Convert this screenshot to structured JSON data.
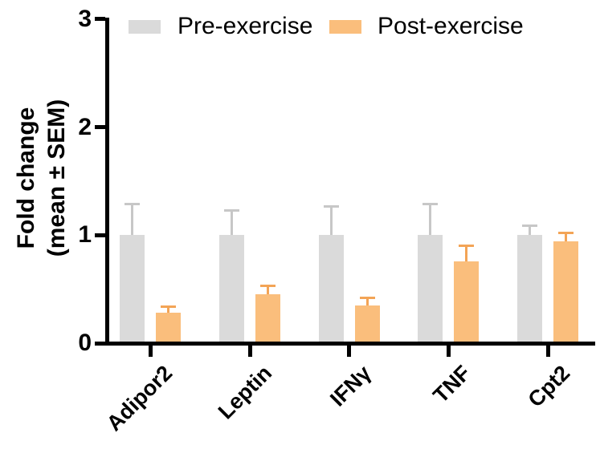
{
  "chart_data": {
    "type": "bar",
    "title": "",
    "ylabel_lines": [
      "Fold change",
      "(mean ± SEM)"
    ],
    "xlabel": "",
    "categories": [
      "Adipor2",
      "Leptin",
      "IFNγ",
      "TNF",
      "Cpt2"
    ],
    "series": [
      {
        "name": "Pre-exercise",
        "color": "#dadada",
        "error_color": "#c7c7c7",
        "values": [
          1.0,
          1.0,
          1.0,
          1.0,
          1.0
        ],
        "errors": [
          0.3,
          0.24,
          0.28,
          0.3,
          0.1
        ]
      },
      {
        "name": "Post-exercise",
        "color": "#fabe7c",
        "error_color": "#f3a456",
        "values": [
          0.28,
          0.45,
          0.35,
          0.76,
          0.94
        ],
        "errors": [
          0.07,
          0.09,
          0.08,
          0.15,
          0.09
        ]
      }
    ],
    "yticks": [
      0,
      1,
      2,
      3
    ],
    "ylim": [
      0,
      3
    ],
    "error_bars": "SEM, upper side only",
    "grid": false,
    "legend_position": "top",
    "axis_color": "#000000",
    "background_color": "#ffffff"
  }
}
